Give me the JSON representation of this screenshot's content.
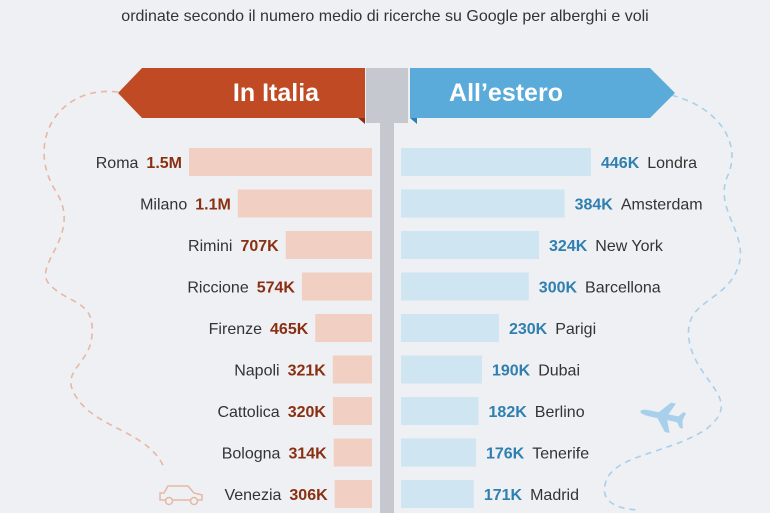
{
  "subtitle": "ordinate secondo il numero medio di ricerche su Google per alberghi e voli",
  "colors": {
    "italy_banner": "#bf4a23",
    "abroad_banner": "#5aabd9",
    "italy_bar": "#f1cfc2",
    "abroad_bar": "#cfe5f2",
    "italy_value": "#8a2f12",
    "abroad_value": "#2f7fb0",
    "pole": "#c5c9cf",
    "dash_left": "#e7b7a4",
    "dash_right": "#a9d0ea"
  },
  "icons": {
    "left_decoration": "car-icon",
    "right_decoration": "airplane-icon"
  },
  "chart_data": [
    {
      "type": "bar",
      "title": "In Italia",
      "orientation": "horizontal",
      "categories": [
        "Roma",
        "Milano",
        "Rimini",
        "Riccione",
        "Firenze",
        "Napoli",
        "Cattolica",
        "Bologna",
        "Venezia"
      ],
      "values": [
        1500000,
        1100000,
        707000,
        574000,
        465000,
        321000,
        320000,
        314000,
        306000
      ],
      "labels": [
        "1.5M",
        "1.1M",
        "707K",
        "574K",
        "465K",
        "321K",
        "320K",
        "314K",
        "306K"
      ]
    },
    {
      "type": "bar",
      "title": "All’estero",
      "orientation": "horizontal",
      "categories": [
        "Londra",
        "Amsterdam",
        "New York",
        "Barcellona",
        "Parigi",
        "Dubai",
        "Berlino",
        "Tenerife",
        "Madrid"
      ],
      "values": [
        446000,
        384000,
        324000,
        300000,
        230000,
        190000,
        182000,
        176000,
        171000
      ],
      "labels": [
        "446K",
        "384K",
        "324K",
        "300K",
        "230K",
        "190K",
        "182K",
        "176K",
        "171K"
      ]
    }
  ]
}
